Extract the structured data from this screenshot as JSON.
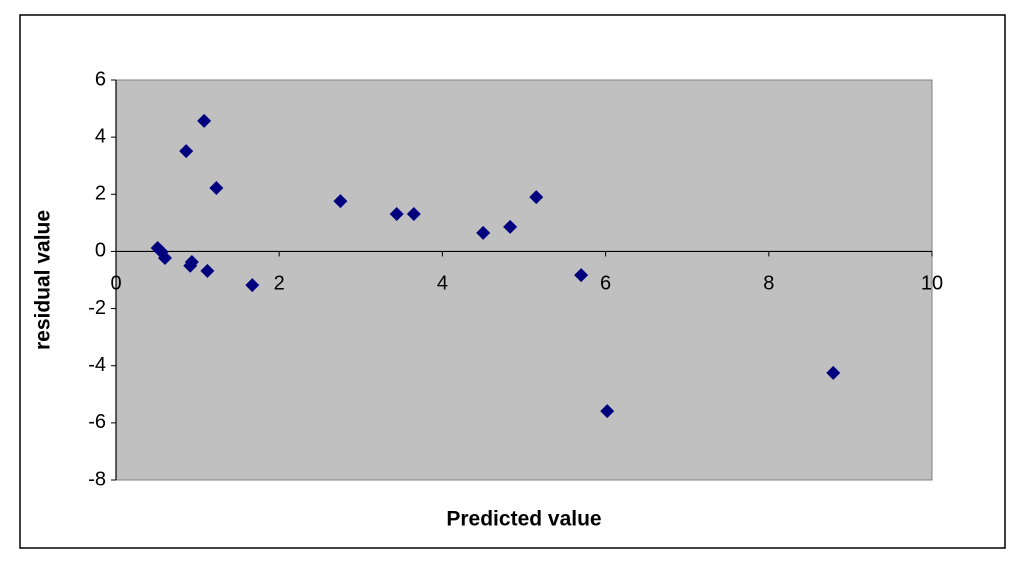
{
  "chart_data": {
    "type": "scatter",
    "x_label": "Predicted value",
    "y_label": "residual value",
    "x": [
      0.51,
      0.56,
      0.6,
      0.86,
      0.93,
      0.91,
      1.08,
      1.12,
      1.23,
      1.67,
      2.75,
      3.44,
      3.65,
      4.5,
      4.83,
      5.15,
      5.7,
      6.02,
      8.79
    ],
    "values": [
      0.12,
      -0.02,
      -0.23,
      3.51,
      -0.37,
      -0.5,
      4.57,
      -0.68,
      2.22,
      -1.18,
      1.76,
      1.31,
      1.31,
      0.65,
      0.86,
      1.9,
      -0.83,
      -5.59,
      -4.25
    ],
    "color": "#00007f",
    "xlim": [
      0,
      10
    ],
    "xticks": [
      0,
      2,
      4,
      6,
      8,
      10
    ],
    "ylim": [
      -8,
      6
    ],
    "yticks": [
      -8,
      -6,
      -4,
      -2,
      0,
      2,
      4,
      6
    ],
    "grid": false
  }
}
